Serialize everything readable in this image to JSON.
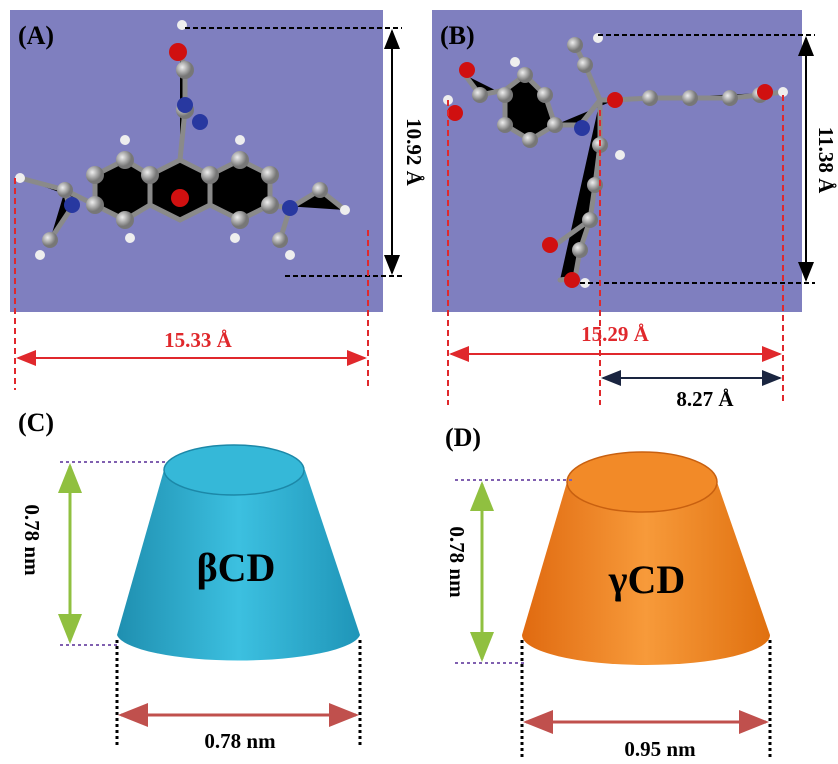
{
  "panels": [
    {
      "label": "(A)",
      "height": "10.92 Å",
      "width": "15.33 Å"
    },
    {
      "label": "(B)",
      "height": "11.38 Å",
      "width": "15.29 Å",
      "partial_width": "8.27 Å"
    },
    {
      "label": "(C)",
      "name": "βCD",
      "height": "0.78 nm",
      "width": "0.78 nm"
    },
    {
      "label": "(D)",
      "name": "γCD",
      "height": "0.78 nm",
      "width": "0.95 nm"
    }
  ]
}
